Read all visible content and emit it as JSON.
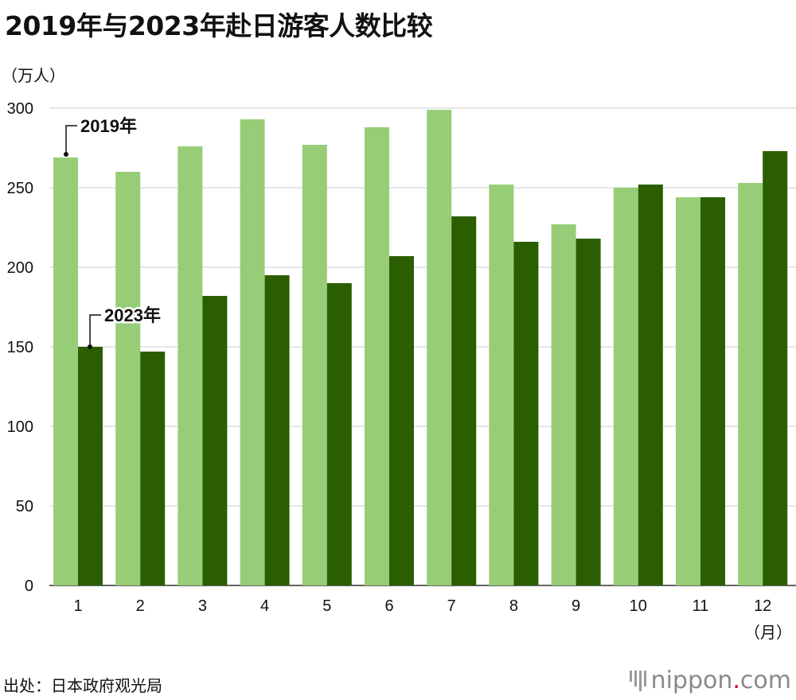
{
  "title": "2019年与2023年赴日游客人数比较",
  "source": "出处：日本政府观光局",
  "logo": {
    "name": "nippon",
    "dot": ".",
    "suffix": "com"
  },
  "colors": {
    "series_2019": "#98cd78",
    "series_2023": "#2a5e00",
    "grid": "#cccccc"
  },
  "chart_data": {
    "type": "bar",
    "categories": [
      "1",
      "2",
      "3",
      "4",
      "5",
      "6",
      "7",
      "8",
      "9",
      "10",
      "11",
      "12"
    ],
    "series": [
      {
        "name": "2019年",
        "values": [
          269,
          260,
          276,
          293,
          277,
          288,
          299,
          252,
          227,
          250,
          244,
          253
        ]
      },
      {
        "name": "2023年",
        "values": [
          150,
          147,
          182,
          195,
          190,
          207,
          232,
          216,
          218,
          252,
          244,
          273
        ]
      }
    ],
    "yticks": [
      0,
      50,
      100,
      150,
      200,
      250,
      300
    ],
    "ylim": [
      0,
      300
    ],
    "ylabel": "（万人）",
    "xlabel": "（月）",
    "grid": true,
    "annotations": [
      {
        "text": "2019年",
        "series": 0,
        "index": 0
      },
      {
        "text": "2023年",
        "series": 1,
        "index": 0
      }
    ]
  }
}
